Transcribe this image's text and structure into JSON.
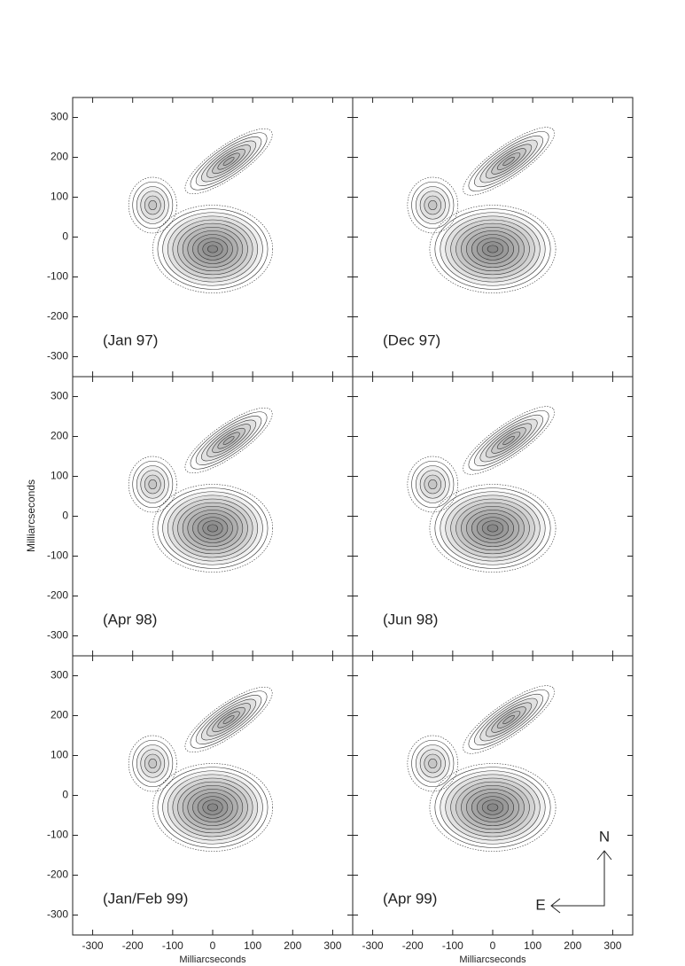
{
  "chart_data": {
    "type": "contour",
    "xlabel": "Milliarcseconds",
    "ylabel": "Milliarcseconds",
    "xlim": [
      -350,
      350
    ],
    "ylim": [
      -350,
      350
    ],
    "xticks": [
      -300,
      -200,
      -100,
      0,
      100,
      200,
      300
    ],
    "yticks": [
      -300,
      -200,
      -100,
      0,
      100,
      200,
      300
    ],
    "panels": [
      {
        "label": "(Jan 97)"
      },
      {
        "label": "(Dec 97)"
      },
      {
        "label": "(Apr 98)"
      },
      {
        "label": "(Jun 98)"
      },
      {
        "label": "(Jan/Feb 99)"
      },
      {
        "label": "(Apr 99)"
      }
    ],
    "compass": {
      "north": "N",
      "east": "E"
    }
  }
}
